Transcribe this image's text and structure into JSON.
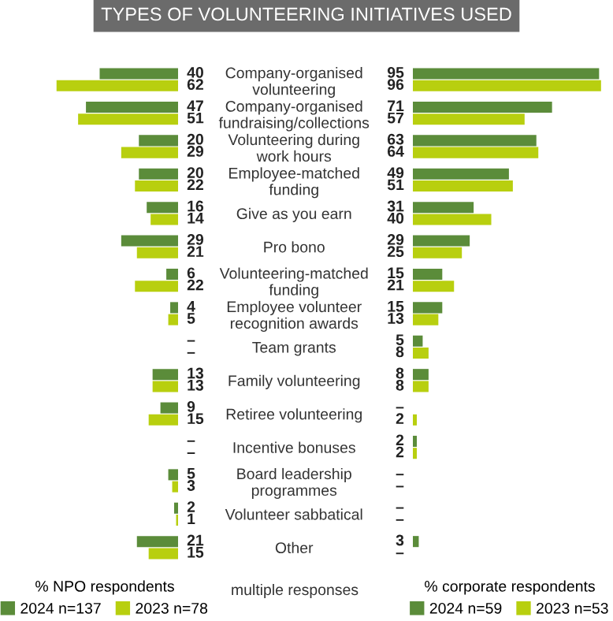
{
  "chart_data": [
    {
      "type": "bar",
      "orientation": "horizontal",
      "title": "TYPES OF VOLUNTEERING INITIATIVES USED",
      "legend_title": "% NPO respondents",
      "legend": "bottom",
      "tick_labels": "y",
      "annotations": [
        "multiple responses"
      ],
      "categories": [
        "Company-organised\nvolunteering",
        "Company-organised\nfundraising/collections",
        "Volunteering during\nwork hours",
        "Employee-matched\nfunding",
        "Give as you earn",
        "Pro bono",
        "Volunteering-matched\nfunding",
        "Employee volunteer\nrecognition awards",
        "Team grants",
        "Family volunteering",
        "Retiree volunteering",
        "Incentive bonuses",
        "Board leadership\nprogrammes",
        "Volunteer sabbatical",
        "Other"
      ],
      "series": [
        {
          "name": "2024 n=137",
          "color": "#5b8c3a",
          "values": [
            40,
            47,
            20,
            20,
            16,
            29,
            6,
            4,
            null,
            13,
            9,
            null,
            5,
            2,
            21
          ],
          "value_labels": [
            "40",
            "47",
            "20",
            "20",
            "16",
            "29",
            "6",
            "4",
            "–",
            "13",
            "9",
            "–",
            "5",
            "2",
            "21"
          ]
        },
        {
          "name": "2023 n=78",
          "color": "#b8cf0f",
          "values": [
            62,
            51,
            29,
            22,
            14,
            21,
            22,
            5,
            null,
            13,
            15,
            null,
            3,
            1,
            15
          ],
          "value_labels": [
            "62",
            "51",
            "29",
            "22",
            "14",
            "21",
            "22",
            "5",
            "–",
            "13",
            "15",
            "–",
            "3",
            "1",
            "15"
          ]
        }
      ]
    },
    {
      "type": "bar",
      "orientation": "horizontal",
      "legend_title": "% corporate respondents",
      "legend": "bottom",
      "tick_labels": false,
      "series": [
        {
          "name": "2024 n=59",
          "color": "#5b8c3a",
          "values": [
            95,
            71,
            63,
            49,
            31,
            29,
            15,
            15,
            5,
            8,
            null,
            2,
            null,
            null,
            3
          ],
          "value_labels": [
            "95",
            "71",
            "63",
            "49",
            "31",
            "29",
            "15",
            "15",
            "5",
            "8",
            "–",
            "2",
            "–",
            "–",
            "3"
          ]
        },
        {
          "name": "2023 n=53",
          "color": "#b8cf0f",
          "values": [
            96,
            57,
            64,
            51,
            40,
            25,
            21,
            13,
            8,
            8,
            2,
            2,
            null,
            null,
            null
          ],
          "value_labels": [
            "96",
            "57",
            "64",
            "51",
            "40",
            "25",
            "21",
            "13",
            "8",
            "8",
            "2",
            "2",
            "–",
            "–",
            "–"
          ]
        }
      ]
    }
  ]
}
